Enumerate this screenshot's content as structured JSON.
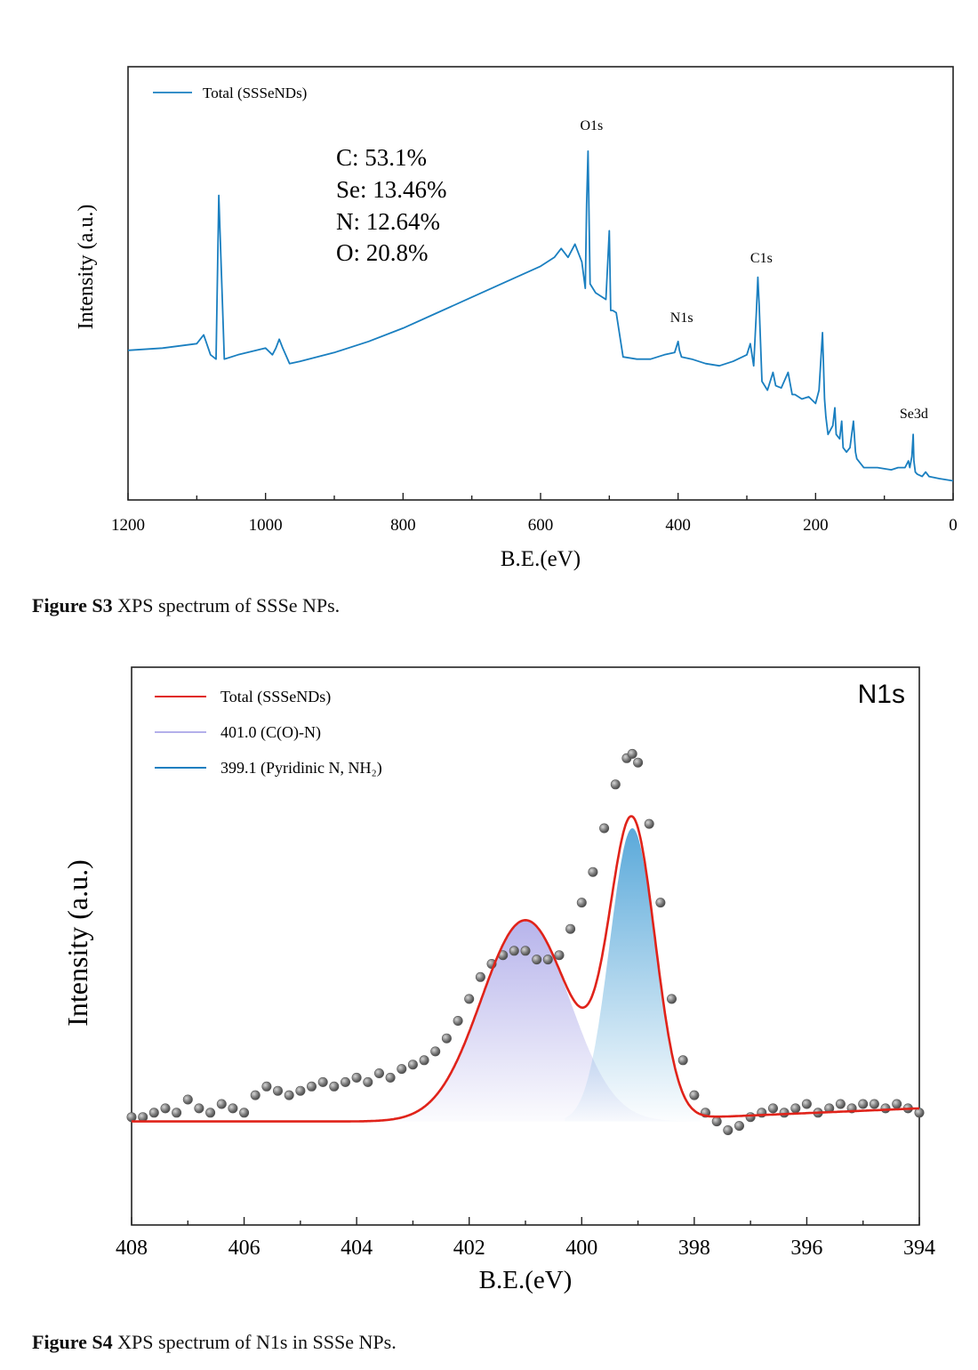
{
  "figure_s3": {
    "caption_label": "Figure S3",
    "caption_text": " XPS spectrum of SSSe NPs.",
    "legend": "Total (SSSeNDs)",
    "composition": [
      "C: 53.1%",
      "Se: 13.46%",
      "N: 12.64%",
      "O: 20.8%"
    ]
  },
  "figure_s4": {
    "caption_label": "Figure S4",
    "caption_text": " XPS spectrum of N1s in SSSe NPs.",
    "panel_label": "N1s",
    "legend": [
      "Total (SSSeNDs)",
      "401.0 (C(O)-N)",
      "399.1 (Pyridinic N, NH₂)"
    ]
  },
  "colors": {
    "survey_line": "#1a7fc0",
    "fit_line": "#e0231a",
    "component_cn": "#b3b0ea",
    "component_pyridinic": "#5aa9da",
    "data_points": "#6f6f6f"
  },
  "chart_data": [
    {
      "type": "line",
      "title": "",
      "xlabel": "B.E.(eV)",
      "ylabel": "Intensity (a.u.)",
      "xlim": [
        1200,
        0
      ],
      "x_reversed": true,
      "xticks": [
        1200,
        1000,
        800,
        600,
        400,
        200,
        0
      ],
      "series": [
        {
          "name": "Total (SSSeNDs)",
          "x": [
            1200,
            1150,
            1100,
            1090,
            1080,
            1072,
            1068,
            1060,
            1040,
            1000,
            990,
            985,
            980,
            975,
            965,
            950,
            900,
            850,
            800,
            750,
            700,
            650,
            600,
            580,
            570,
            560,
            550,
            540,
            535,
            533,
            531,
            528,
            520,
            505,
            500,
            498,
            495,
            490,
            480,
            460,
            440,
            420,
            405,
            400,
            398,
            395,
            380,
            360,
            340,
            320,
            300,
            295,
            290,
            286,
            284,
            282,
            278,
            270,
            262,
            258,
            250,
            240,
            234,
            230,
            220,
            210,
            200,
            195,
            190,
            187,
            185,
            182,
            175,
            172,
            170,
            165,
            162,
            160,
            155,
            150,
            145,
            142,
            140,
            130,
            110,
            90,
            80,
            70,
            65,
            63,
            60,
            58,
            57,
            55,
            52,
            45,
            40,
            35,
            20,
            0
          ],
          "values": [
            62,
            63,
            65,
            69,
            60,
            58,
            132,
            58,
            60,
            63,
            60,
            63,
            67,
            63,
            56,
            57,
            61,
            66,
            72,
            79,
            86,
            93,
            100,
            104,
            108,
            104,
            110,
            102,
            90,
            128,
            152,
            92,
            88,
            85,
            116,
            80,
            80,
            79,
            59,
            58,
            58,
            60,
            61,
            66,
            62,
            59,
            58,
            56,
            55,
            57,
            60,
            65,
            55,
            80,
            95,
            82,
            48,
            44,
            52,
            46,
            45,
            52,
            42,
            42,
            40,
            41,
            38,
            44,
            70,
            40,
            32,
            24,
            28,
            36,
            24,
            22,
            30,
            18,
            16,
            18,
            30,
            16,
            13,
            9,
            9,
            8,
            9,
            9,
            12,
            9,
            14,
            24,
            12,
            7,
            6,
            5,
            7,
            5,
            4,
            3
          ]
        }
      ],
      "annotations": [
        {
          "text": "O1s",
          "x": 531
        },
        {
          "text": "N1s",
          "x": 400
        },
        {
          "text": "C1s",
          "x": 284
        },
        {
          "text": "Se3d",
          "x": 57
        }
      ]
    },
    {
      "type": "line",
      "title": "",
      "xlabel": "B.E.(eV)",
      "ylabel": "Intensity (a.u.)",
      "xlim": [
        408,
        394
      ],
      "x_reversed": true,
      "xticks": [
        408,
        406,
        404,
        402,
        400,
        398,
        396,
        394
      ],
      "ylim": [
        0,
        100
      ],
      "background": 8,
      "series": [
        {
          "name": "Total (SSSeNDs)",
          "kind": "fit",
          "color": "#e0231a"
        },
        {
          "name": "401.0 (C(O)-N)",
          "kind": "gaussian",
          "center": 401.0,
          "height": 46,
          "fwhm": 1.85,
          "color": "#b3b0ea"
        },
        {
          "name": "399.1 (Pyridinic N, NH₂)",
          "kind": "gaussian",
          "center": 399.1,
          "height": 67,
          "fwhm": 0.95,
          "color": "#5aa9da"
        },
        {
          "name": "experimental",
          "kind": "points",
          "color": "#6f6f6f",
          "x": [
            408.0,
            407.8,
            407.6,
            407.4,
            407.2,
            407.0,
            406.8,
            406.6,
            406.4,
            406.2,
            406.0,
            405.8,
            405.6,
            405.4,
            405.2,
            405.0,
            404.8,
            404.6,
            404.4,
            404.2,
            404.0,
            403.8,
            403.6,
            403.4,
            403.2,
            403.0,
            402.8,
            402.6,
            402.4,
            402.2,
            402.0,
            401.8,
            401.6,
            401.4,
            401.2,
            401.0,
            400.8,
            400.6,
            400.4,
            400.2,
            400.0,
            399.8,
            399.6,
            399.4,
            399.2,
            399.1,
            399.0,
            398.8,
            398.6,
            398.4,
            398.2,
            398.0,
            397.8,
            397.6,
            397.4,
            397.2,
            397.0,
            396.8,
            396.6,
            396.4,
            396.2,
            396.0,
            395.8,
            395.6,
            395.4,
            395.2,
            395.0,
            394.8,
            394.6,
            394.4,
            394.2,
            394.0
          ],
          "values": [
            9,
            9,
            10,
            11,
            10,
            13,
            11,
            10,
            12,
            11,
            10,
            14,
            16,
            15,
            14,
            15,
            16,
            17,
            16,
            17,
            18,
            17,
            19,
            18,
            20,
            21,
            22,
            24,
            27,
            31,
            36,
            41,
            44,
            46,
            47,
            47,
            45,
            45,
            46,
            52,
            58,
            65,
            75,
            85,
            91,
            92,
            90,
            76,
            58,
            36,
            22,
            14,
            10,
            8,
            6,
            7,
            9,
            10,
            11,
            10,
            11,
            12,
            10,
            11,
            12,
            11,
            12,
            12,
            11,
            12,
            11,
            10
          ]
        }
      ],
      "panel_label": "N1s"
    }
  ]
}
